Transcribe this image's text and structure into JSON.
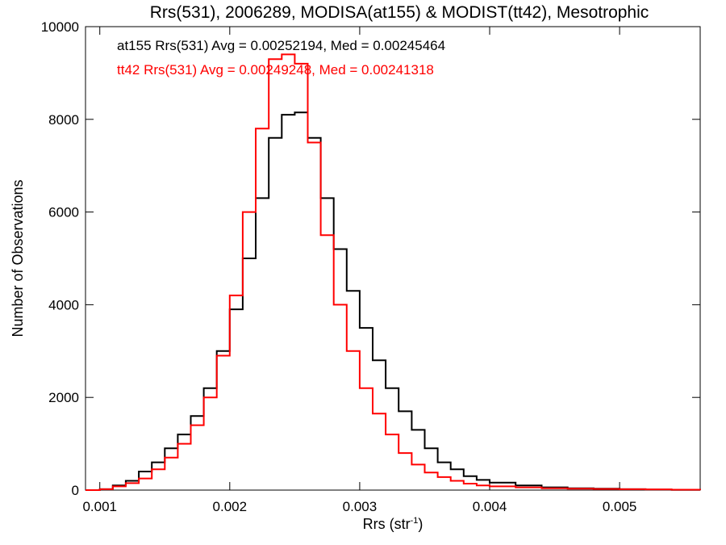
{
  "chart_data": {
    "type": "line",
    "title": "Rrs(531), 2006289, MODISA(at155) & MODIST(tt42), Mesotrophic",
    "xlabel_main": "Rrs (str",
    "xlabel_sup": "-1",
    "xlabel_close": ")",
    "ylabel": "Number of Observations",
    "xlim": [
      0.00089,
      0.00562
    ],
    "ylim": [
      0,
      10000
    ],
    "xticks": [
      0.001,
      0.002,
      0.003,
      0.004,
      0.005
    ],
    "xtick_labels": [
      "0.001",
      "0.002",
      "0.003",
      "0.004",
      "0.005"
    ],
    "yticks": [
      0,
      2000,
      4000,
      6000,
      8000,
      10000
    ],
    "ytick_labels": [
      "0",
      "2000",
      "4000",
      "6000",
      "8000",
      "10000"
    ],
    "grid": false,
    "series": [
      {
        "name": "at155",
        "color": "#000000",
        "annotation": "at155 Rrs(531) Avg = 0.00252194, Med = 0.00245464",
        "x": [
          0.00089,
          0.001,
          0.0011,
          0.0012,
          0.0013,
          0.0014,
          0.0015,
          0.0016,
          0.0017,
          0.0018,
          0.0019,
          0.002,
          0.0021,
          0.0022,
          0.0023,
          0.0024,
          0.0025,
          0.0026,
          0.0027,
          0.0028,
          0.0029,
          0.003,
          0.0031,
          0.0032,
          0.0033,
          0.0034,
          0.0035,
          0.0036,
          0.0037,
          0.0038,
          0.0039,
          0.004,
          0.0042,
          0.0044,
          0.0046,
          0.0048,
          0.005,
          0.0052,
          0.0054,
          0.00562
        ],
        "y": [
          0,
          20,
          100,
          200,
          400,
          600,
          900,
          1200,
          1600,
          2200,
          3000,
          3900,
          5000,
          6300,
          7600,
          8100,
          8150,
          7600,
          6300,
          5200,
          4300,
          3500,
          2800,
          2200,
          1700,
          1300,
          900,
          600,
          450,
          300,
          220,
          160,
          100,
          60,
          40,
          30,
          20,
          10,
          5,
          0
        ]
      },
      {
        "name": "tt42",
        "color": "#ff0000",
        "annotation": "tt42 Rrs(531) Avg = 0.00249248, Med = 0.00241318",
        "x": [
          0.00089,
          0.001,
          0.0011,
          0.0012,
          0.0013,
          0.0014,
          0.0015,
          0.0016,
          0.0017,
          0.0018,
          0.0019,
          0.002,
          0.0021,
          0.0022,
          0.0023,
          0.0024,
          0.0025,
          0.0026,
          0.0027,
          0.0028,
          0.0029,
          0.003,
          0.0031,
          0.0032,
          0.0033,
          0.0034,
          0.0035,
          0.0036,
          0.0037,
          0.0038,
          0.0039,
          0.004,
          0.0042,
          0.0044,
          0.0046,
          0.0048,
          0.005,
          0.0052,
          0.0054,
          0.00562
        ],
        "y": [
          0,
          20,
          80,
          150,
          250,
          450,
          700,
          1000,
          1400,
          2000,
          2900,
          4200,
          6000,
          7800,
          9300,
          9400,
          9200,
          7500,
          5500,
          4000,
          3000,
          2200,
          1650,
          1200,
          800,
          550,
          380,
          280,
          200,
          140,
          100,
          80,
          60,
          40,
          30,
          25,
          20,
          15,
          8,
          0
        ]
      }
    ]
  }
}
